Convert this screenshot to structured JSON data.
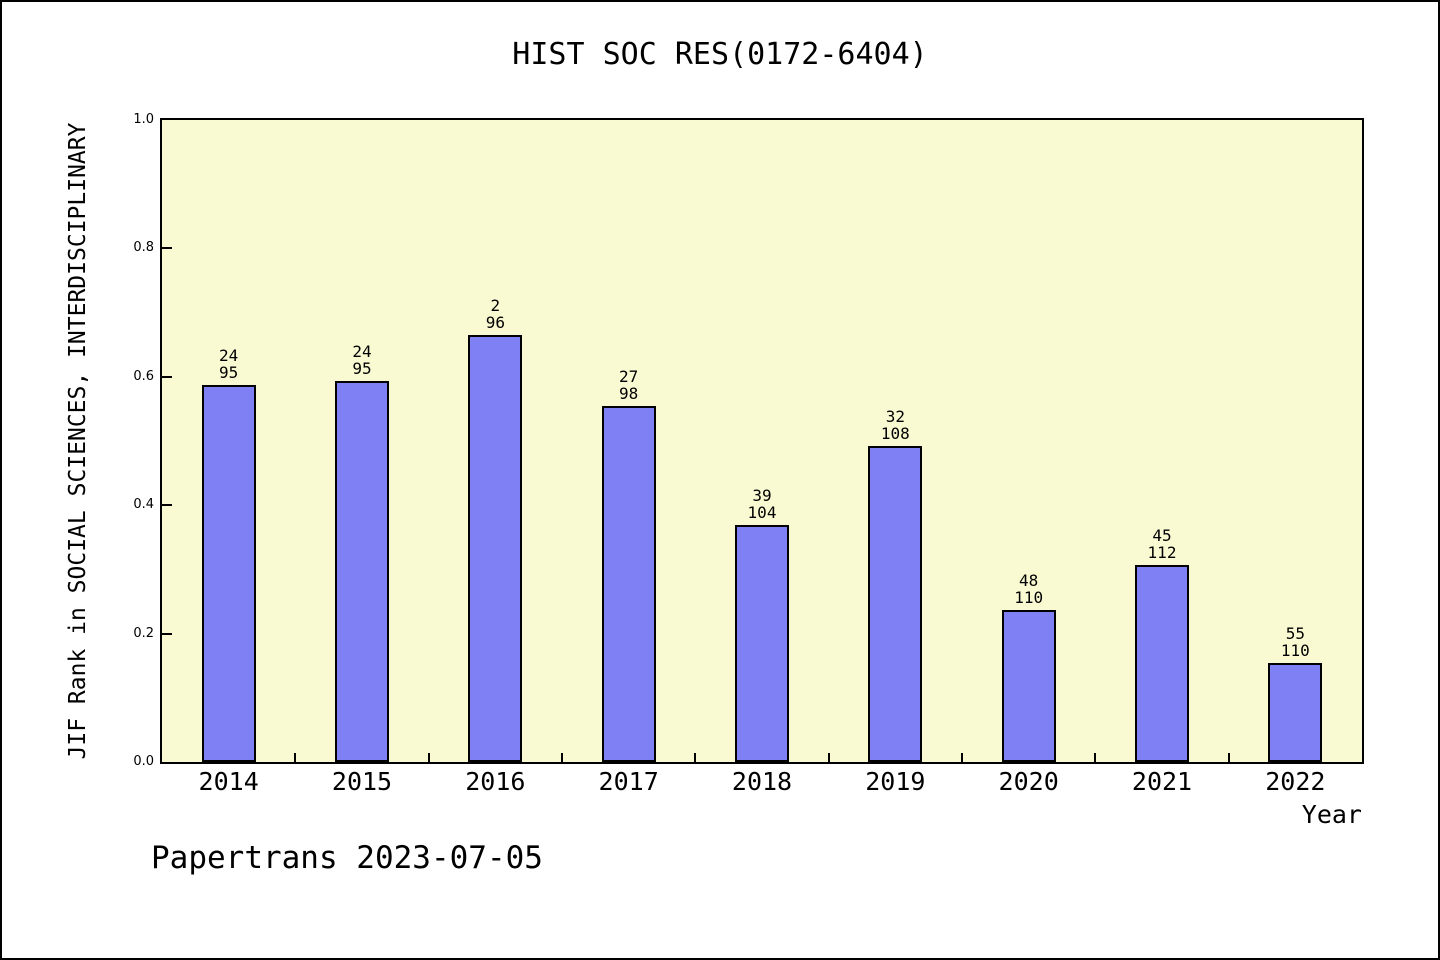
{
  "title": "HIST SOC RES(0172-6404)",
  "footer": "Papertrans 2023-07-05",
  "colors": {
    "bar_fill": "#8080F5",
    "bar_edge": "#000000",
    "plot_background": "#FAFAD2",
    "axis": "#000000",
    "text": "#000000",
    "page_background": "#FFFFFF"
  },
  "chart_data": {
    "type": "bar",
    "title": "HIST SOC RES(0172-6404)",
    "xlabel": "Year",
    "ylabel": "JIF Rank in SOCIAL SCIENCES, INTERDISCIPLINARY",
    "ylim": [
      0.0,
      1.0
    ],
    "yticks": [
      "0.0",
      "0.2",
      "0.4",
      "0.6",
      "0.8",
      "1.0"
    ],
    "grid": "off",
    "legend": "none",
    "categories": [
      "2014",
      "2015",
      "2016",
      "2017",
      "2018",
      "2019",
      "2020",
      "2021",
      "2022"
    ],
    "values": [
      0.587,
      0.593,
      0.665,
      0.554,
      0.369,
      0.492,
      0.237,
      0.307,
      0.154
    ],
    "bar_label_rank": [
      "24",
      "24",
      "2",
      "27",
      "39",
      "32",
      "48",
      "45",
      "55"
    ],
    "bar_label_total": [
      "95",
      "95",
      "96",
      "98",
      "104",
      "108",
      "110",
      "112",
      "110"
    ]
  }
}
